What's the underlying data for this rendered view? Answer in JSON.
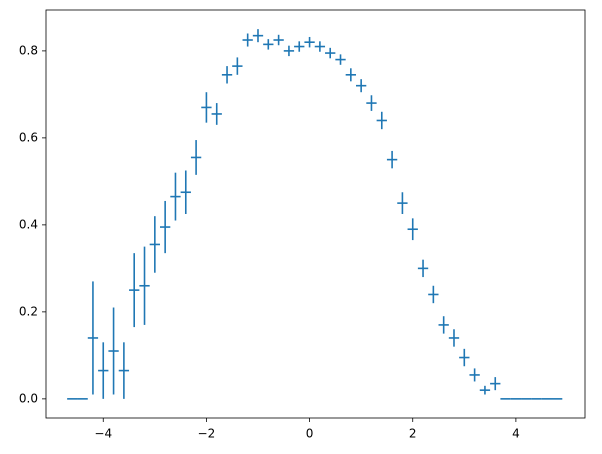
{
  "chart_data": {
    "type": "errorbar",
    "color": "#1f77b4",
    "x": [
      -4.6,
      -4.4,
      -4.2,
      -4.0,
      -3.8,
      -3.6,
      -3.4,
      -3.2,
      -3.0,
      -2.8,
      -2.6,
      -2.4,
      -2.2,
      -2.0,
      -1.8,
      -1.6,
      -1.4,
      -1.2,
      -1.0,
      -0.8,
      -0.6,
      -0.4,
      -0.2,
      0.0,
      0.2,
      0.4,
      0.6,
      0.8,
      1.0,
      1.2,
      1.4,
      1.6,
      1.8,
      2.0,
      2.2,
      2.4,
      2.6,
      2.8,
      3.0,
      3.2,
      3.4,
      3.6,
      3.8,
      4.0,
      4.2,
      4.4,
      4.6,
      4.8
    ],
    "values": [
      0,
      0,
      0.14,
      0.065,
      0.11,
      0.065,
      0.25,
      0.26,
      0.355,
      0.395,
      0.465,
      0.475,
      0.555,
      0.67,
      0.655,
      0.745,
      0.765,
      0.825,
      0.835,
      0.815,
      0.825,
      0.8,
      0.81,
      0.82,
      0.81,
      0.795,
      0.78,
      0.745,
      0.72,
      0.68,
      0.64,
      0.55,
      0.45,
      0.39,
      0.3,
      0.24,
      0.17,
      0.14,
      0.095,
      0.055,
      0.02,
      0.035,
      0,
      0,
      0,
      0,
      0,
      0
    ],
    "yerr": [
      0,
      0,
      0.13,
      0.065,
      0.1,
      0.065,
      0.085,
      0.09,
      0.065,
      0.06,
      0.055,
      0.05,
      0.04,
      0.035,
      0.025,
      0.02,
      0.02,
      0.015,
      0.015,
      0.012,
      0.012,
      0.012,
      0.012,
      0.012,
      0.012,
      0.012,
      0.012,
      0.015,
      0.015,
      0.018,
      0.02,
      0.02,
      0.025,
      0.025,
      0.02,
      0.02,
      0.02,
      0.02,
      0.02,
      0.015,
      0.01,
      0.015,
      0,
      0,
      0,
      0,
      0,
      0
    ],
    "xerr": 0.1,
    "xlim": [
      -5.11,
      5.34
    ],
    "ylim": [
      -0.044,
      0.894
    ],
    "xticks": [
      {
        "value": -4,
        "label": "−4"
      },
      {
        "value": -2,
        "label": "−2"
      },
      0,
      2,
      4
    ],
    "yticks": [
      {
        "value": 0,
        "label": "0.0"
      },
      0.2,
      0.4,
      0.6,
      0.8
    ],
    "grid": false
  }
}
